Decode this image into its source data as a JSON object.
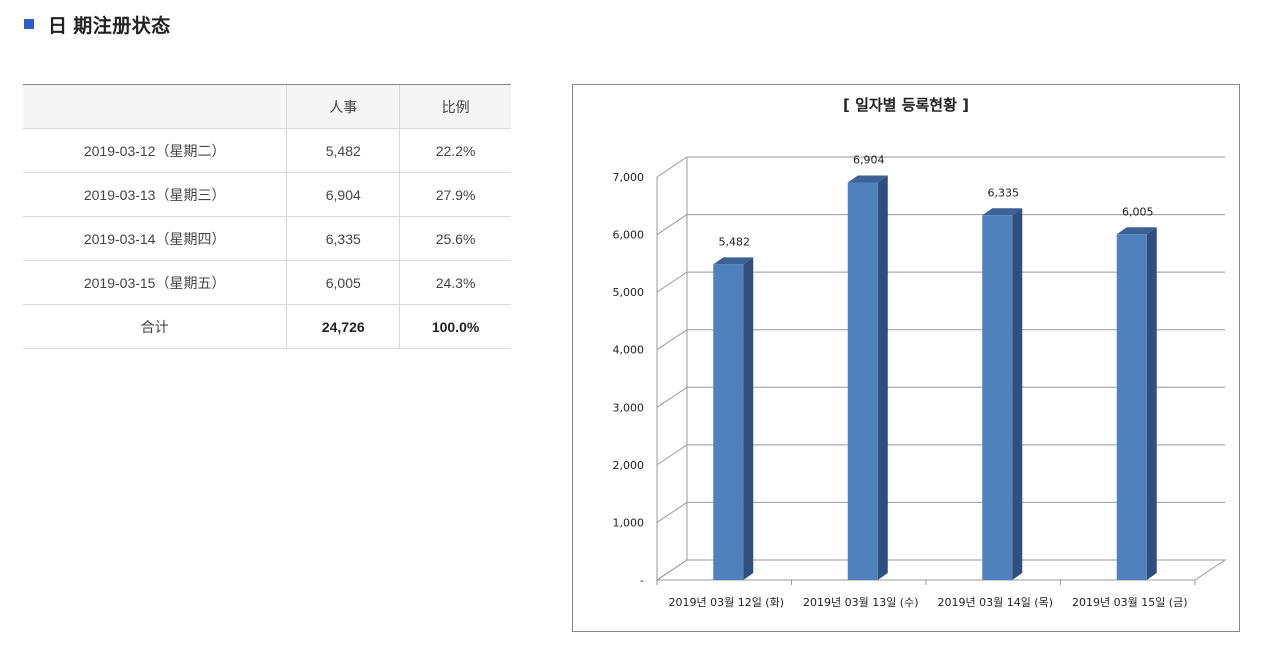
{
  "section": {
    "title": "日 期注册状态"
  },
  "table": {
    "headers": [
      "",
      "人事",
      "比例"
    ],
    "rows": [
      {
        "date": "2019-03-12（星期二）",
        "count": "5,482",
        "ratio": "22.2%"
      },
      {
        "date": "2019-03-13（星期三）",
        "count": "6,904",
        "ratio": "27.9%"
      },
      {
        "date": "2019-03-14（星期四）",
        "count": "6,335",
        "ratio": "25.6%"
      },
      {
        "date": "2019-03-15（星期五）",
        "count": "6,005",
        "ratio": "24.3%"
      }
    ],
    "total": {
      "label": "合计",
      "count": "24,726",
      "ratio": "100.0%"
    }
  },
  "colors": {
    "accent": "#2b5bc8",
    "bar_front": "#4f81bd",
    "bar_side": "#2f4f7f",
    "bar_top": "#3a6296",
    "grid": "#999999"
  },
  "chart_data": {
    "type": "bar",
    "title": "[ 일자별 등록현황 ]",
    "categories": [
      "2019년 03월 12일 (화)",
      "2019년 03월 13일 (수)",
      "2019년 03월 14일 (목)",
      "2019년 03월 15일 (금)"
    ],
    "values": [
      5482,
      6904,
      6335,
      6005
    ],
    "data_labels": [
      "5,482",
      "6,904",
      "6,335",
      "6,005"
    ],
    "y_ticks": [
      0,
      1000,
      2000,
      3000,
      4000,
      5000,
      6000,
      7000
    ],
    "y_tick_labels": [
      "-",
      "1,000",
      "2,000",
      "3,000",
      "4,000",
      "5,000",
      "6,000",
      "7,000"
    ],
    "ylim": [
      0,
      7000
    ],
    "grid": true,
    "style": "3d-column"
  }
}
